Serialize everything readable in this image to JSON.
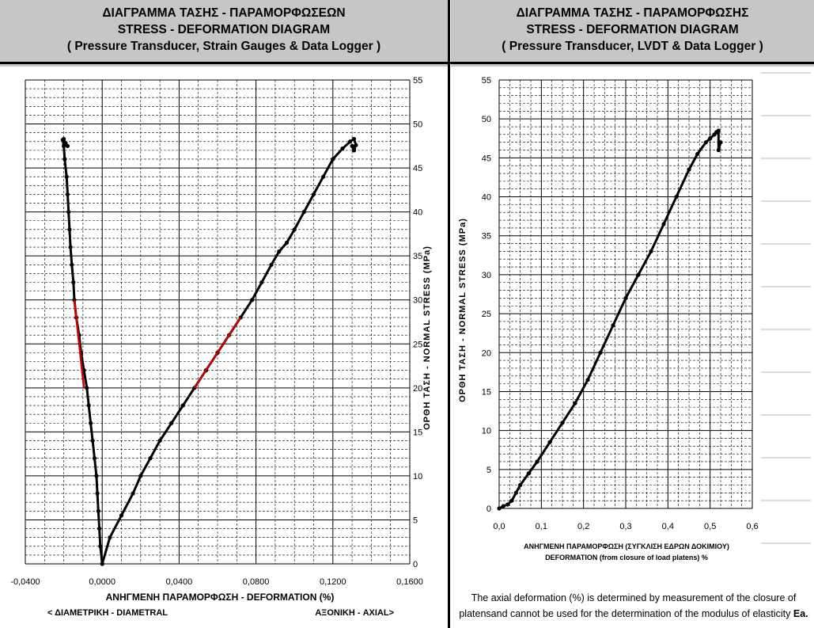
{
  "left_header": {
    "line1": "ΔΙΑΓΡΑΜΜΑ ΤΑΣΗΣ - ΠΑΡΑΜΟΡΦΩΣΕΩΝ",
    "line2": "STRESS - DEFORMATION DIAGRAM",
    "line3": "( Pressure Transducer, Strain Gauges & Data Logger )"
  },
  "right_header": {
    "line1": "ΔΙΑΓΡΑΜΜΑ ΤΑΣΗΣ - ΠΑΡΑΜΟΡΦΩΣΗΣ",
    "line2": "STRESS - DEFORMATION DIAGRAM",
    "line3": "( Pressure Transducer, LVDT & Data Logger )"
  },
  "note": {
    "line1": "The axial deformation (%) is determined by measurement of the closure of",
    "line2": "platensand cannot be used for the determination of the modulus of elasticity",
    "line2_bold": "Ea."
  },
  "colors": {
    "header_bg": "#c6c6c6",
    "series": "#000000",
    "highlight": "#cc0000"
  },
  "chart_data": [
    {
      "type": "line",
      "xlabel": "ΑΝΗΓΜΕΝΗ ΠΑΡΑΜΟΡΦΩΣΗ - DEFORMATION (%)",
      "ylabel": "ΟΡΘΗ ΤΑΣΗ - NORMAL STRESS (MPa)",
      "xlabel_left": "< ΔΙΑΜΕΤΡΙΚΗ - DIAMETRAL",
      "xlabel_right": "ΑΞΟΝΙΚΗ - AXIAL>",
      "xlim": [
        -0.04,
        0.16
      ],
      "ylim": [
        0,
        55
      ],
      "x_ticks": [
        "-0,0400",
        "0,0000",
        "0,0400",
        "0,0800",
        "0,1200",
        "0,1600"
      ],
      "y_ticks": [
        "0",
        "5",
        "10",
        "15",
        "20",
        "25",
        "30",
        "35",
        "40",
        "45",
        "50",
        "55"
      ],
      "y_axis_side": "right",
      "grid": true,
      "series": [
        {
          "x": [
            0.0,
            -0.001,
            -0.0015,
            -0.002,
            -0.0025,
            -0.003,
            -0.004,
            -0.005,
            -0.006,
            -0.007,
            -0.008,
            -0.0095,
            -0.011,
            -0.012,
            -0.0135,
            -0.0145,
            -0.015,
            -0.0158,
            -0.0165,
            -0.017,
            -0.0175,
            -0.018,
            -0.0185,
            -0.0195,
            -0.02,
            -0.0205,
            -0.02,
            -0.019,
            -0.018
          ],
          "y": [
            0,
            2,
            4,
            6,
            8,
            10,
            12,
            14,
            16,
            18,
            20,
            22,
            24,
            26,
            28,
            30,
            32,
            34,
            36,
            38,
            40,
            42,
            44,
            46,
            47.5,
            48.2,
            48.3,
            47.8,
            47.5
          ]
        },
        {
          "x": [
            0.0,
            0.004,
            0.01,
            0.016,
            0.02,
            0.025,
            0.03,
            0.036,
            0.042,
            0.048,
            0.054,
            0.06,
            0.066,
            0.072,
            0.078,
            0.083,
            0.088,
            0.092,
            0.096,
            0.1,
            0.105,
            0.11,
            0.115,
            0.12,
            0.125,
            0.129,
            0.131,
            0.132,
            0.131,
            0.13,
            0.131
          ],
          "y": [
            0,
            3,
            5.5,
            8,
            10,
            12,
            14,
            16,
            18,
            20,
            22,
            24,
            26,
            28,
            30,
            32,
            34,
            35.5,
            36.5,
            38,
            40,
            42,
            44,
            46,
            47.2,
            48,
            48.3,
            47.6,
            47.2,
            47.5,
            47
          ]
        }
      ],
      "highlight_segments": [
        {
          "x": [
            -0.0095,
            -0.0145
          ],
          "y": [
            20,
            30
          ]
        },
        {
          "x": [
            0.048,
            0.072
          ],
          "y": [
            20,
            28
          ]
        }
      ]
    },
    {
      "type": "line",
      "xlabel": "ΑΝΗΓΜΕΝΗ ΠΑΡΑΜΟΡΦΩΣΗ (ΣΥΓΚΛΙΣΗ ΕΔΡΩΝ ΔΟΚΙΜΙΟΥ)",
      "xlabel2": "DEFORMATION (from closure of load platens) %",
      "ylabel": "ΟΡΘΗ ΤΑΣΗ - NORMAL STRESS (MPa)",
      "xlim": [
        0,
        0.6
      ],
      "ylim": [
        0,
        55
      ],
      "x_ticks": [
        "0,0",
        "0,1",
        "0,2",
        "0,3",
        "0,4",
        "0,5",
        "0,6"
      ],
      "y_ticks": [
        "0",
        "5",
        "10",
        "15",
        "20",
        "25",
        "30",
        "35",
        "40",
        "45",
        "50",
        "55"
      ],
      "y_axis_side": "left",
      "grid": true,
      "series": [
        {
          "x": [
            0.0,
            0.01,
            0.02,
            0.03,
            0.04,
            0.05,
            0.07,
            0.09,
            0.12,
            0.15,
            0.18,
            0.21,
            0.24,
            0.27,
            0.3,
            0.33,
            0.36,
            0.39,
            0.42,
            0.45,
            0.47,
            0.49,
            0.5,
            0.51,
            0.515,
            0.52,
            0.52,
            0.525
          ],
          "y": [
            0,
            0.3,
            0.5,
            1,
            2,
            3,
            4.5,
            6,
            8.5,
            11,
            13.5,
            16.5,
            20,
            23.5,
            27,
            30,
            33,
            36.5,
            40,
            43.5,
            45.5,
            47,
            47.5,
            48,
            48.3,
            48.5,
            46,
            47
          ]
        }
      ]
    }
  ]
}
